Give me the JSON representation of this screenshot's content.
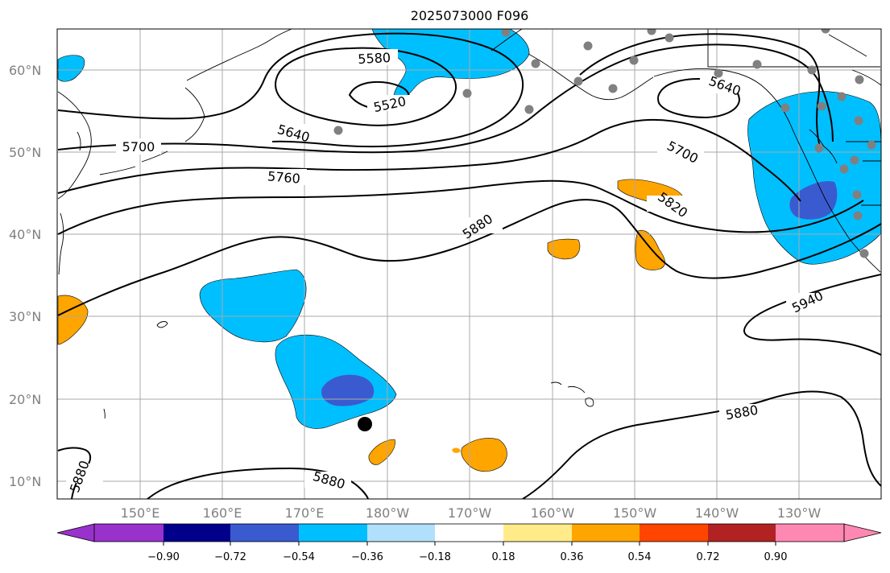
{
  "figure": {
    "title": "2025073000 F096"
  },
  "map": {
    "lon_ticks": [
      "150°E",
      "160°E",
      "170°E",
      "180°W",
      "170°W",
      "160°W",
      "150°W",
      "140°W",
      "130°W"
    ],
    "lat_ticks": [
      "60°N",
      "50°N",
      "40°N",
      "30°N",
      "20°N",
      "10°N"
    ],
    "grid": true,
    "extent": {
      "lon_min": 140,
      "lon_max": 240,
      "lat_min": 8,
      "lat_max": 65
    }
  },
  "contours": {
    "color": "#000000",
    "labels": [
      "5580",
      "5520",
      "5640",
      "5700",
      "5760",
      "5880",
      "5640",
      "5700",
      "5820",
      "5940",
      "5880",
      "5880",
      "5880"
    ]
  },
  "station_points": {
    "count": 27,
    "color": "#808080"
  },
  "storm_center": {
    "color": "#000000"
  },
  "colorbar": {
    "colors": [
      "#9932cc",
      "#00008b",
      "#3a5bd0",
      "#00bfff",
      "#b0e0fb",
      "#ffffff",
      "#ffeb8a",
      "#ffa500",
      "#ff4500",
      "#b22222",
      "#ff88b3"
    ],
    "labels": [
      "−0.90",
      "−0.72",
      "−0.54",
      "−0.36",
      "−0.18",
      "0.18",
      "0.36",
      "0.54",
      "0.72",
      "0.90"
    ],
    "extend": "both"
  }
}
